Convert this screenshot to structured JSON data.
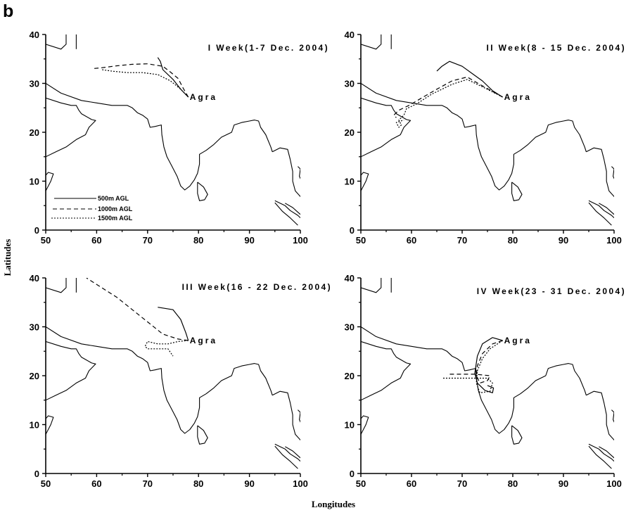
{
  "figure_label": "b",
  "xlabel": "Longitudes",
  "ylabel": "Latitudes",
  "chart_data": [
    {
      "type": "line",
      "title": "I Week(1-7 Dec. 2004)",
      "xlim": [
        50,
        100
      ],
      "ylim": [
        0,
        40
      ],
      "xticks": [
        "50",
        "60",
        "70",
        "80",
        "90",
        "100"
      ],
      "yticks": [
        "0",
        "10",
        "20",
        "30",
        "40"
      ],
      "city": {
        "name": "Agra",
        "lon": 78,
        "lat": 27.2
      },
      "legend": [
        "500m AGL",
        "1000m AGL",
        "1500m AGL"
      ],
      "series": [
        {
          "name": "500m AGL",
          "x": [
            78,
            76.5,
            75,
            73,
            72.5,
            72
          ],
          "y": [
            27.2,
            28.8,
            30.8,
            32.8,
            34.5,
            35.3
          ]
        },
        {
          "name": "1000m AGL",
          "x": [
            78,
            77,
            76,
            74.5,
            73,
            70,
            67,
            64,
            61,
            59
          ],
          "y": [
            27.2,
            29,
            31,
            32.3,
            33.5,
            34,
            33.9,
            33.6,
            33.2,
            33
          ]
        },
        {
          "name": "1500m AGL",
          "x": [
            78,
            76.5,
            74.5,
            72,
            69,
            66,
            63,
            61
          ],
          "y": [
            27.2,
            28.8,
            30.5,
            31.8,
            32.2,
            32.2,
            32.5,
            32.8
          ]
        }
      ]
    },
    {
      "type": "line",
      "title": "II Week(8 - 15 Dec. 2004)",
      "xlim": [
        50,
        100
      ],
      "ylim": [
        0,
        40
      ],
      "xticks": [
        "50",
        "60",
        "70",
        "80",
        "90",
        "100"
      ],
      "yticks": [
        "0",
        "10",
        "20",
        "30",
        "40"
      ],
      "city": {
        "name": "Agra",
        "lon": 78,
        "lat": 27.2
      },
      "series": [
        {
          "name": "500m AGL",
          "x": [
            78,
            76,
            74,
            72,
            70,
            67.5,
            66,
            65
          ],
          "y": [
            27.2,
            28.5,
            30.5,
            32,
            33.5,
            34.5,
            33.5,
            32.5
          ]
        },
        {
          "name": "1000m AGL",
          "x": [
            78,
            74,
            71,
            68,
            65,
            62,
            59.5,
            57.5,
            56.5,
            57
          ],
          "y": [
            27.2,
            29.5,
            31.3,
            30.5,
            28.8,
            27,
            25.5,
            24.5,
            23.5,
            23
          ]
        },
        {
          "name": "1500m AGL",
          "x": [
            78,
            74,
            71,
            68,
            64,
            61,
            59,
            58.5,
            57.5,
            58,
            57.5,
            57,
            58.5
          ],
          "y": [
            27.2,
            29.3,
            30.8,
            29.8,
            27.8,
            25.8,
            24.8,
            23.5,
            22.5,
            21.5,
            21,
            22,
            22.5
          ]
        }
      ]
    },
    {
      "type": "line",
      "title": "III Week(16 - 22 Dec. 2004)",
      "xlim": [
        50,
        100
      ],
      "ylim": [
        0,
        40
      ],
      "xticks": [
        "50",
        "60",
        "70",
        "80",
        "90",
        "100"
      ],
      "yticks": [
        "0",
        "10",
        "20",
        "30",
        "40"
      ],
      "city": {
        "name": "Agra",
        "lon": 78,
        "lat": 27.2
      },
      "series": [
        {
          "name": "500m AGL",
          "x": [
            78,
            77.5,
            76.5,
            75,
            72
          ],
          "y": [
            27.2,
            28.8,
            31.5,
            33.5,
            34
          ]
        },
        {
          "name": "1000m AGL",
          "x": [
            78,
            76,
            73,
            70,
            67,
            64,
            61,
            58
          ],
          "y": [
            27.2,
            27.5,
            28.5,
            31,
            33.5,
            36,
            38,
            40
          ]
        },
        {
          "name": "1500m AGL",
          "x": [
            78,
            76,
            74,
            72,
            70,
            69.5,
            70,
            72,
            74,
            75
          ],
          "y": [
            27.2,
            27,
            26.5,
            26.5,
            27,
            26,
            25.5,
            25.5,
            25.5,
            24
          ]
        }
      ]
    },
    {
      "type": "line",
      "title": "IV Week(23 - 31 Dec. 2004)",
      "xlim": [
        50,
        100
      ],
      "ylim": [
        0,
        40
      ],
      "xticks": [
        "50",
        "60",
        "70",
        "80",
        "90",
        "100"
      ],
      "yticks": [
        "0",
        "10",
        "20",
        "30",
        "40"
      ],
      "city": {
        "name": "Agra",
        "lon": 78,
        "lat": 27.2
      },
      "series": [
        {
          "name": "500m AGL",
          "x": [
            78,
            76,
            74,
            73,
            72.5,
            73,
            74.5,
            76,
            76.2,
            75
          ],
          "y": [
            27.2,
            27.8,
            26.5,
            24,
            20.5,
            18.5,
            17,
            16.5,
            17.5,
            18
          ]
        },
        {
          "name": "1000m AGL",
          "x": [
            78,
            76,
            74,
            73,
            72.8,
            73.5,
            75,
            75.5,
            72.5,
            70,
            67
          ],
          "y": [
            27.2,
            26.5,
            24.5,
            22,
            20,
            18.5,
            19,
            20,
            20.3,
            20.3,
            20.3
          ]
        },
        {
          "name": "1500m AGL",
          "x": [
            78,
            75.5,
            74,
            73,
            72.8,
            73.5,
            75.5,
            76,
            75,
            72.5,
            69.5,
            66
          ],
          "y": [
            27.2,
            25.5,
            23.5,
            21,
            18.5,
            16.5,
            16.8,
            18.5,
            19.5,
            19.5,
            19.5,
            19.5
          ]
        }
      ]
    }
  ]
}
